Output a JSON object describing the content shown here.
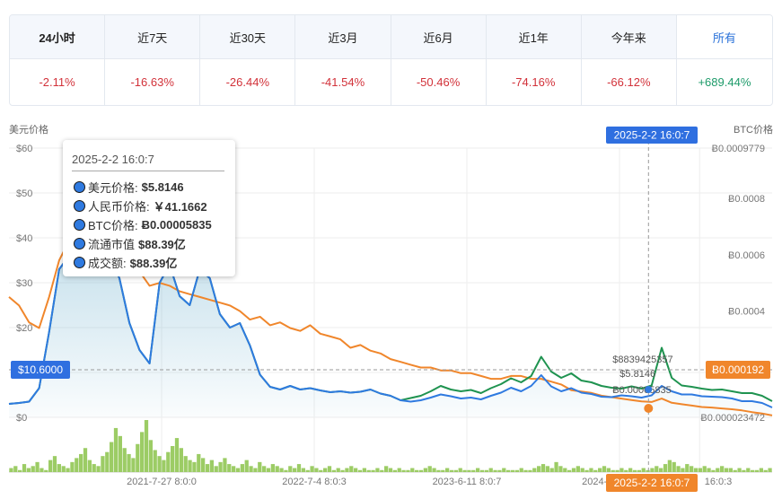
{
  "performance": [
    {
      "label": "24小时",
      "value": "-2.11%",
      "tone": "neg",
      "bold": true,
      "active": false
    },
    {
      "label": "近7天",
      "value": "-16.63%",
      "tone": "neg",
      "bold": false,
      "active": false
    },
    {
      "label": "近30天",
      "value": "-26.44%",
      "tone": "neg",
      "bold": false,
      "active": false
    },
    {
      "label": "近3月",
      "value": "-41.54%",
      "tone": "neg",
      "bold": false,
      "active": false
    },
    {
      "label": "近6月",
      "value": "-50.46%",
      "tone": "neg",
      "bold": false,
      "active": false
    },
    {
      "label": "近1年",
      "value": "-74.16%",
      "tone": "neg",
      "bold": false,
      "active": false
    },
    {
      "label": "今年来",
      "value": "-66.12%",
      "tone": "neg",
      "bold": false,
      "active": false
    },
    {
      "label": "所有",
      "value": "+689.44%",
      "tone": "pos",
      "bold": false,
      "active": true
    }
  ],
  "colors": {
    "usd_line": "#2f7ae0",
    "mcap_line": "#1f9350",
    "btc_line": "#f0862b",
    "volume_bar": "#9ccc65",
    "badge_blue": "#2f6fe0",
    "badge_orange": "#f0862b"
  },
  "chart_data": {
    "type": "line",
    "left_axis_label": "美元价格",
    "right_axis_label": "BTC价格",
    "left_ticks": [
      "$60",
      "$50",
      "$40",
      "$30",
      "$20",
      "$10",
      "$0"
    ],
    "left_tick_values": [
      60,
      50,
      40,
      30,
      20,
      10,
      0
    ],
    "right_ticks": [
      "Ƀ0.0009779",
      "Ƀ0.0008",
      "Ƀ0.0006",
      "Ƀ0.0004",
      "Ƀ0.000023472"
    ],
    "right_tick_values": [
      0.0009779,
      0.0008,
      0.0006,
      0.0004,
      2.3472e-05
    ],
    "ylim_left": [
      0,
      60
    ],
    "ylim_right": [
      2.3472e-05,
      0.0009779
    ],
    "x_tick_labels": [
      "2021-7-27 8:0:0",
      "2022-7-4 8:0:3",
      "2023-6-11 8:0:7",
      "2024-5-26 8:0:12",
      "2025-2-2 16:0:7"
    ],
    "x_tick_fractions": [
      0.2,
      0.4,
      0.6,
      0.8,
      0.905
    ],
    "trailing_tick_fragment": "16:0:3",
    "crosshair_x_label": "2025-2-2 16:0:7",
    "crosshair_fraction": 0.838,
    "crosshair_left_label": "$10.6000",
    "crosshair_left_value": 10.6,
    "crosshair_right_label": "Ƀ0.000192",
    "crosshair_right_value": 0.000192,
    "point_annotations": [
      "$8839425357",
      "$5.8146",
      "Ƀ0.00005835"
    ],
    "series": [
      {
        "name": "美元价格",
        "axis": "left",
        "y": [
          3,
          3.2,
          3.5,
          6.5,
          19,
          33,
          36,
          34,
          33,
          39,
          36,
          31,
          21,
          15,
          12,
          30,
          34,
          27,
          25,
          33,
          31,
          23,
          20,
          21,
          16,
          9.5,
          6.8,
          6.2,
          7,
          6.2,
          6.5,
          6,
          5.6,
          5.8,
          5.5,
          5.7,
          6.2,
          5.3,
          4.8,
          3.8,
          3.5,
          3.8,
          4.4,
          5.1,
          4.7,
          4.2,
          4.4,
          4,
          4.8,
          5.5,
          6.6,
          5.8,
          7,
          9.4,
          6.9,
          5.8,
          6.5,
          5.5,
          5.2,
          4.6,
          4.5,
          4.9,
          4.7,
          4.4,
          4.9,
          7,
          5.8,
          5.1,
          5.1,
          4.7,
          4.6,
          4.5,
          4.2,
          3.6,
          3.6,
          3.2,
          2.2
        ]
      },
      {
        "name": "流通市值",
        "axis": "left",
        "y": [
          3,
          3.2,
          3.5,
          6.5,
          19,
          33,
          36,
          34,
          33,
          39,
          36,
          31,
          21,
          15,
          12,
          30,
          34,
          27,
          25,
          33,
          31,
          23,
          20,
          21,
          16,
          9.5,
          6.8,
          6.2,
          7,
          6.2,
          6.5,
          6,
          5.6,
          5.8,
          5.5,
          5.7,
          6.2,
          5.3,
          4.8,
          3.8,
          4.3,
          4.8,
          5.8,
          7,
          6.2,
          5.8,
          6.1,
          5.4,
          6.5,
          7.4,
          8.7,
          7.8,
          9.2,
          13.5,
          10.2,
          8.8,
          9.8,
          8.2,
          7.8,
          7,
          6.6,
          6.4,
          6.9,
          6.4,
          7.1,
          15.5,
          8.8,
          7.1,
          6.8,
          6.4,
          6.1,
          6.2,
          5.8,
          5.4,
          5.4,
          4.8,
          3.6
        ]
      },
      {
        "name": "BTC价格",
        "axis": "right",
        "y": [
          0.00045,
          0.00042,
          0.00036,
          0.00034,
          0.00045,
          0.00058,
          0.00065,
          0.00062,
          0.00057,
          0.00067,
          0.00061,
          0.00058,
          0.00055,
          0.00054,
          0.00049,
          0.0005,
          0.00049,
          0.00047,
          0.00046,
          0.00045,
          0.00044,
          0.00043,
          0.00042,
          0.0004,
          0.00037,
          0.00038,
          0.00035,
          0.00036,
          0.00034,
          0.00033,
          0.00035,
          0.00032,
          0.00031,
          0.0003,
          0.00027,
          0.00028,
          0.00026,
          0.00025,
          0.00023,
          0.00022,
          0.00021,
          0.0002,
          0.0002,
          0.00019,
          0.00019,
          0.00018,
          0.00018,
          0.00017,
          0.00016,
          0.00016,
          0.00017,
          0.00017,
          0.00016,
          0.00016,
          0.00015,
          0.00014,
          0.00012,
          0.000115,
          0.00011,
          0.0001,
          9.5e-05,
          9e-05,
          8.5e-05,
          8e-05,
          7.8e-05,
          9e-05,
          7.5e-05,
          7e-05,
          6.5e-05,
          6e-05,
          5.8e-05,
          5.5e-05,
          5.2e-05,
          4.8e-05,
          4.2e-05,
          3.7e-05,
          3e-05
        ]
      }
    ],
    "volume": [
      2,
      3,
      1,
      4,
      2,
      3,
      5,
      2,
      1,
      6,
      8,
      4,
      3,
      2,
      5,
      7,
      9,
      12,
      6,
      4,
      3,
      8,
      10,
      15,
      22,
      18,
      12,
      9,
      7,
      14,
      20,
      26,
      16,
      11,
      8,
      6,
      10,
      13,
      17,
      12,
      8,
      6,
      5,
      9,
      7,
      4,
      6,
      3,
      5,
      7,
      4,
      3,
      2,
      4,
      6,
      3,
      2,
      5,
      3,
      2,
      4,
      3,
      2,
      1,
      3,
      2,
      4,
      2,
      1,
      3,
      2,
      1,
      2,
      3,
      1,
      2,
      1,
      2,
      3,
      2,
      1,
      2,
      1,
      1,
      2,
      1,
      3,
      2,
      1,
      2,
      1,
      1,
      2,
      1,
      1,
      2,
      3,
      2,
      1,
      1,
      2,
      1,
      1,
      2,
      1,
      1,
      1,
      2,
      1,
      1,
      2,
      1,
      1,
      2,
      1,
      1,
      1,
      2,
      1,
      1,
      2,
      3,
      4,
      3,
      2,
      5,
      3,
      2,
      1,
      2,
      3,
      2,
      1,
      2,
      1,
      2,
      3,
      2,
      1,
      1,
      2,
      1,
      2,
      1,
      1,
      2,
      1,
      2,
      3,
      2,
      4,
      6,
      5,
      3,
      2,
      4,
      3,
      2,
      2,
      3,
      2,
      1,
      2,
      3,
      2,
      2,
      1,
      2,
      1,
      2,
      1,
      1,
      2,
      1,
      2
    ]
  },
  "tooltip": {
    "date": "2025-2-2 16:0:7",
    "rows": [
      {
        "label": "美元价格:",
        "value": "$5.8146"
      },
      {
        "label": "人民币价格:",
        "value": "￥41.1662"
      },
      {
        "label": "BTC价格:",
        "value": "Ƀ0.00005835"
      },
      {
        "label": "流通市值",
        "value": "$88.39亿"
      },
      {
        "label": "成交额:",
        "value": "$88.39亿"
      }
    ]
  }
}
